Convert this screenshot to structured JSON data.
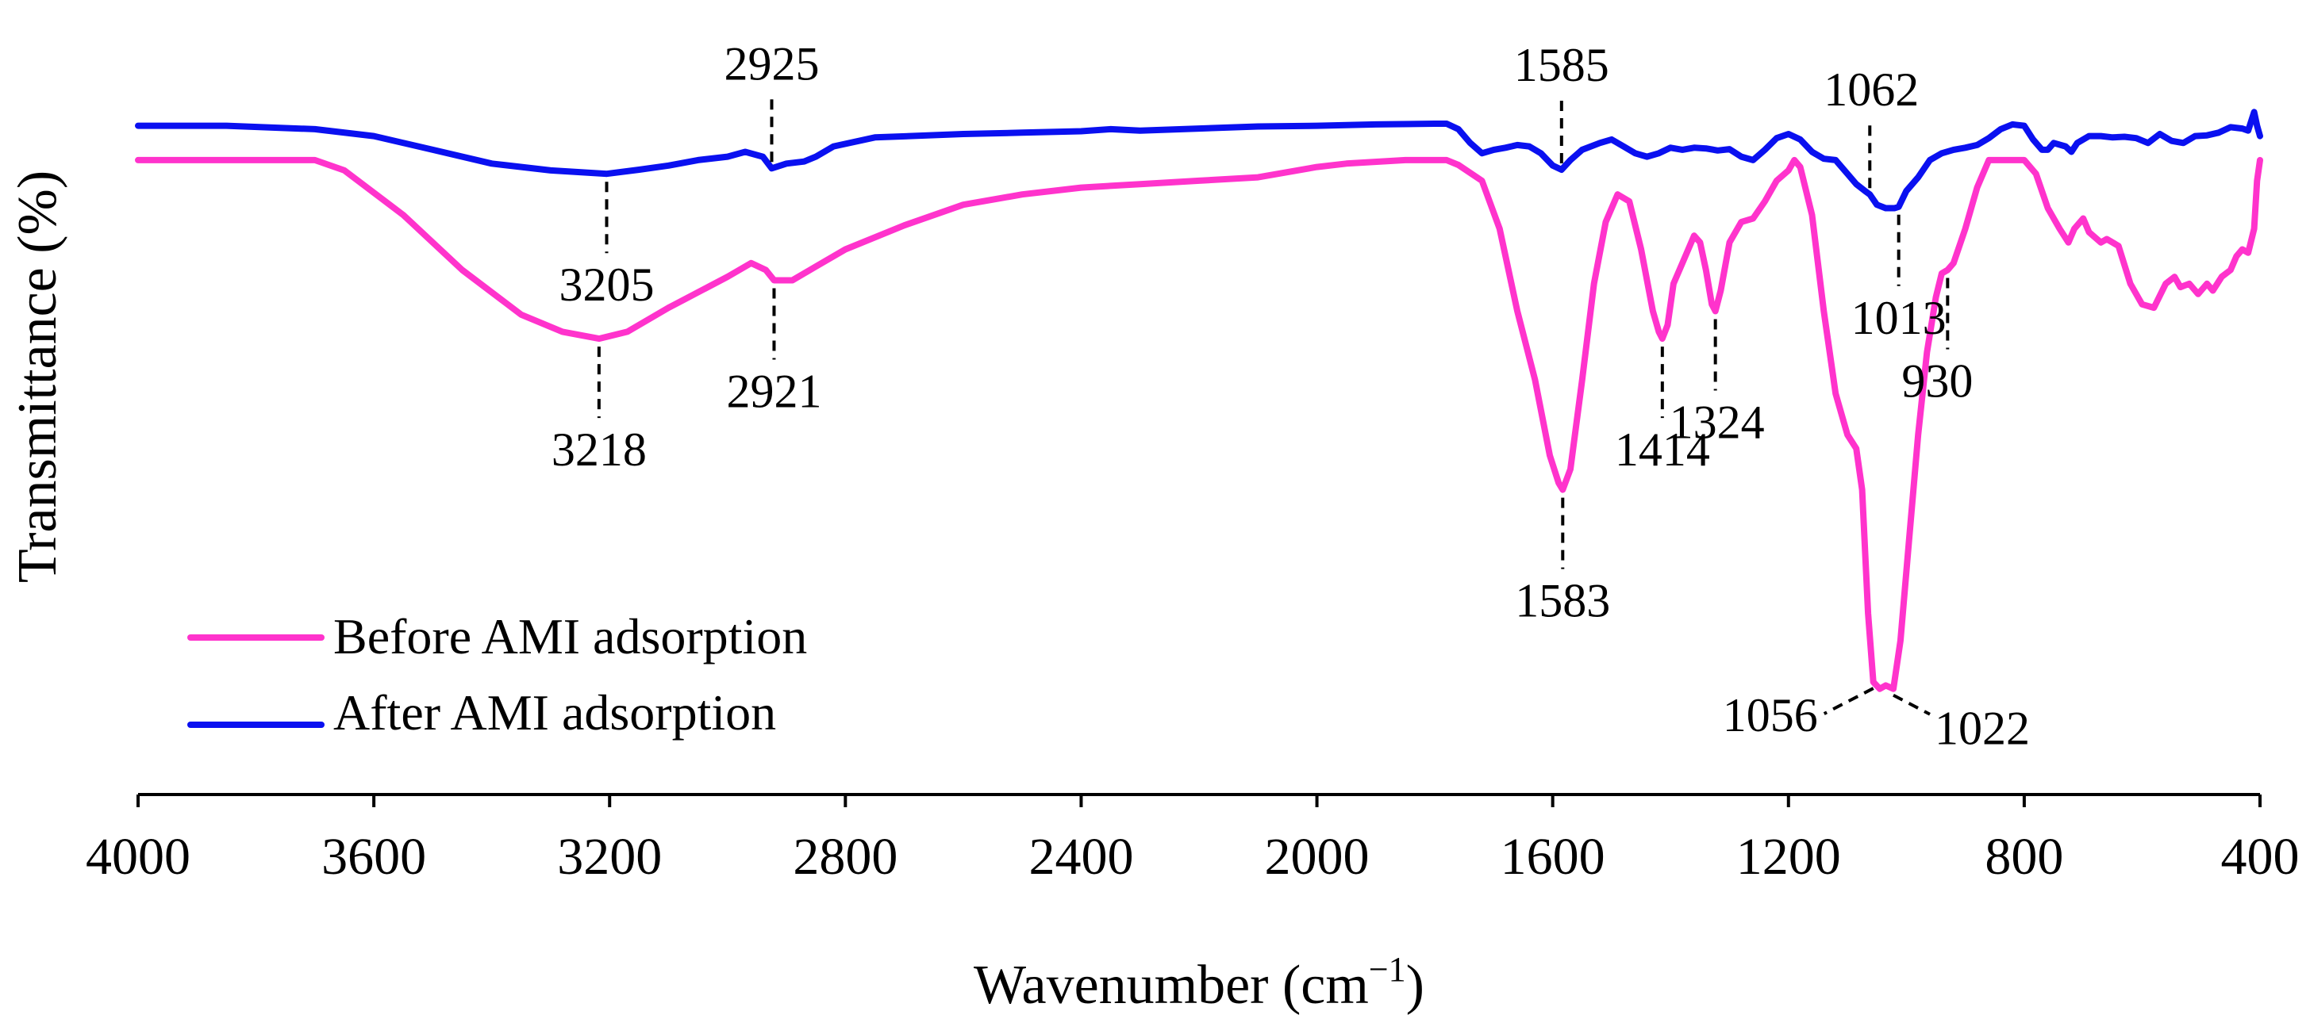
{
  "chart_data": {
    "type": "line",
    "title": "",
    "xlabel": "Wavenumber (cm⁻¹)",
    "xlabel_main": "Wavenumber (cm",
    "xlabel_sup": "−1",
    "xlabel_close": ")",
    "ylabel": "Transmittance (%)",
    "xlim": [
      4000,
      400
    ],
    "x_reversed": true,
    "ylim": [
      0,
      100
    ],
    "grid": false,
    "legend_position": "bottom-left",
    "x_ticks": [
      4000,
      3600,
      3200,
      2800,
      2400,
      2000,
      1600,
      1200,
      800,
      400
    ],
    "x_tick_labels": [
      "4000",
      "3600",
      "3200",
      "2800",
      "2400",
      "2000",
      "1600",
      "1200",
      "800",
      "400"
    ],
    "series": [
      {
        "name": "Before AMI adsorption",
        "color": "#ff33cc",
        "points": [
          [
            4000,
            88
          ],
          [
            3850,
            88
          ],
          [
            3700,
            88
          ],
          [
            3650,
            86.5
          ],
          [
            3550,
            80
          ],
          [
            3450,
            72
          ],
          [
            3350,
            65.5
          ],
          [
            3280,
            63
          ],
          [
            3218,
            62
          ],
          [
            3170,
            63
          ],
          [
            3100,
            66.5
          ],
          [
            3000,
            71
          ],
          [
            2960,
            73
          ],
          [
            2935,
            72
          ],
          [
            2921,
            70.5
          ],
          [
            2890,
            70.5
          ],
          [
            2850,
            72.5
          ],
          [
            2800,
            75
          ],
          [
            2700,
            78.5
          ],
          [
            2600,
            81.5
          ],
          [
            2500,
            83
          ],
          [
            2400,
            84
          ],
          [
            2300,
            84.5
          ],
          [
            2200,
            85
          ],
          [
            2100,
            85.5
          ],
          [
            2000,
            87
          ],
          [
            1950,
            87.5
          ],
          [
            1850,
            88
          ],
          [
            1780,
            88
          ],
          [
            1760,
            87.3
          ],
          [
            1720,
            85
          ],
          [
            1690,
            78
          ],
          [
            1660,
            66
          ],
          [
            1630,
            56
          ],
          [
            1605,
            45
          ],
          [
            1590,
            41
          ],
          [
            1583,
            40
          ],
          [
            1570,
            43
          ],
          [
            1550,
            56
          ],
          [
            1530,
            70
          ],
          [
            1510,
            79
          ],
          [
            1490,
            83
          ],
          [
            1470,
            82
          ],
          [
            1450,
            75
          ],
          [
            1430,
            66
          ],
          [
            1420,
            63
          ],
          [
            1414,
            62
          ],
          [
            1405,
            64
          ],
          [
            1395,
            70
          ],
          [
            1380,
            73
          ],
          [
            1360,
            77
          ],
          [
            1350,
            76
          ],
          [
            1340,
            72
          ],
          [
            1330,
            67
          ],
          [
            1324,
            66
          ],
          [
            1315,
            69
          ],
          [
            1300,
            76
          ],
          [
            1280,
            79
          ],
          [
            1260,
            79.5
          ],
          [
            1240,
            82
          ],
          [
            1220,
            85
          ],
          [
            1200,
            86.5
          ],
          [
            1190,
            88
          ],
          [
            1180,
            87
          ],
          [
            1160,
            80
          ],
          [
            1140,
            66
          ],
          [
            1120,
            54
          ],
          [
            1100,
            48
          ],
          [
            1085,
            46
          ],
          [
            1075,
            40
          ],
          [
            1065,
            22
          ],
          [
            1056,
            12
          ],
          [
            1045,
            11
          ],
          [
            1035,
            11.5
          ],
          [
            1022,
            11
          ],
          [
            1010,
            18
          ],
          [
            995,
            33
          ],
          [
            980,
            48
          ],
          [
            965,
            60
          ],
          [
            950,
            68
          ],
          [
            940,
            71.5
          ],
          [
            930,
            72
          ],
          [
            920,
            73
          ],
          [
            900,
            78
          ],
          [
            880,
            84
          ],
          [
            860,
            88
          ],
          [
            840,
            88
          ],
          [
            800,
            88
          ],
          [
            780,
            86
          ],
          [
            760,
            81
          ],
          [
            740,
            78
          ],
          [
            725,
            76
          ],
          [
            715,
            78
          ],
          [
            700,
            79.5
          ],
          [
            690,
            77.5
          ],
          [
            670,
            76
          ],
          [
            660,
            76.5
          ],
          [
            640,
            75.5
          ],
          [
            620,
            70
          ],
          [
            600,
            67
          ],
          [
            580,
            66.5
          ],
          [
            560,
            70
          ],
          [
            545,
            71
          ],
          [
            535,
            69.5
          ],
          [
            520,
            70
          ],
          [
            505,
            68.5
          ],
          [
            490,
            70
          ],
          [
            480,
            69
          ],
          [
            465,
            71
          ],
          [
            450,
            72
          ],
          [
            440,
            74
          ],
          [
            430,
            75
          ],
          [
            420,
            74.5
          ],
          [
            410,
            78
          ],
          [
            405,
            85
          ],
          [
            400,
            88
          ]
        ]
      },
      {
        "name": "After AMI adsorption",
        "color": "#0a10f0",
        "points": [
          [
            4000,
            93
          ],
          [
            3850,
            93
          ],
          [
            3700,
            92.5
          ],
          [
            3600,
            91.5
          ],
          [
            3500,
            89.5
          ],
          [
            3400,
            87.5
          ],
          [
            3300,
            86.5
          ],
          [
            3205,
            86
          ],
          [
            3150,
            86.6
          ],
          [
            3100,
            87.2
          ],
          [
            3050,
            88
          ],
          [
            3000,
            88.5
          ],
          [
            2970,
            89.2
          ],
          [
            2940,
            88.5
          ],
          [
            2925,
            86.8
          ],
          [
            2900,
            87.5
          ],
          [
            2870,
            87.8
          ],
          [
            2850,
            88.5
          ],
          [
            2820,
            90
          ],
          [
            2750,
            91.3
          ],
          [
            2600,
            91.8
          ],
          [
            2500,
            92
          ],
          [
            2400,
            92.2
          ],
          [
            2350,
            92.5
          ],
          [
            2300,
            92.3
          ],
          [
            2200,
            92.6
          ],
          [
            2100,
            92.9
          ],
          [
            2000,
            93
          ],
          [
            1900,
            93.2
          ],
          [
            1800,
            93.3
          ],
          [
            1780,
            93.3
          ],
          [
            1760,
            92.5
          ],
          [
            1740,
            90.5
          ],
          [
            1720,
            89
          ],
          [
            1700,
            89.5
          ],
          [
            1680,
            89.8
          ],
          [
            1660,
            90.2
          ],
          [
            1640,
            90
          ],
          [
            1620,
            89
          ],
          [
            1600,
            87.2
          ],
          [
            1585,
            86.6
          ],
          [
            1570,
            88
          ],
          [
            1550,
            89.5
          ],
          [
            1520,
            90.5
          ],
          [
            1500,
            91
          ],
          [
            1480,
            90
          ],
          [
            1460,
            89
          ],
          [
            1440,
            88.5
          ],
          [
            1420,
            89
          ],
          [
            1400,
            89.8
          ],
          [
            1380,
            89.5
          ],
          [
            1360,
            89.8
          ],
          [
            1340,
            89.7
          ],
          [
            1320,
            89.4
          ],
          [
            1300,
            89.6
          ],
          [
            1280,
            88.5
          ],
          [
            1260,
            88
          ],
          [
            1240,
            89.5
          ],
          [
            1220,
            91.2
          ],
          [
            1200,
            91.8
          ],
          [
            1180,
            91
          ],
          [
            1160,
            89.2
          ],
          [
            1140,
            88.2
          ],
          [
            1120,
            88
          ],
          [
            1100,
            86
          ],
          [
            1085,
            84.5
          ],
          [
            1070,
            83.5
          ],
          [
            1062,
            83
          ],
          [
            1050,
            81.5
          ],
          [
            1035,
            81
          ],
          [
            1020,
            81
          ],
          [
            1013,
            81.2
          ],
          [
            1000,
            83.5
          ],
          [
            980,
            85.5
          ],
          [
            960,
            88
          ],
          [
            940,
            89
          ],
          [
            920,
            89.5
          ],
          [
            900,
            89.8
          ],
          [
            880,
            90.2
          ],
          [
            860,
            91.2
          ],
          [
            840,
            92.5
          ],
          [
            820,
            93.2
          ],
          [
            800,
            93
          ],
          [
            785,
            91
          ],
          [
            770,
            89.5
          ],
          [
            760,
            89.5
          ],
          [
            750,
            90.5
          ],
          [
            730,
            90
          ],
          [
            720,
            89.2
          ],
          [
            710,
            90.5
          ],
          [
            690,
            91.5
          ],
          [
            670,
            91.5
          ],
          [
            650,
            91.3
          ],
          [
            630,
            91.4
          ],
          [
            610,
            91.2
          ],
          [
            590,
            90.5
          ],
          [
            570,
            91.8
          ],
          [
            550,
            90.8
          ],
          [
            530,
            90.5
          ],
          [
            510,
            91.5
          ],
          [
            490,
            91.6
          ],
          [
            470,
            92
          ],
          [
            450,
            92.8
          ],
          [
            430,
            92.6
          ],
          [
            420,
            92.3
          ],
          [
            410,
            95
          ],
          [
            405,
            93
          ],
          [
            400,
            91.5
          ]
        ]
      }
    ],
    "annotations": [
      {
        "text": "3218",
        "series": "Before AMI adsorption",
        "x": 3218,
        "dir": "down",
        "anchor": "middle"
      },
      {
        "text": "2921",
        "series": "Before AMI adsorption",
        "x": 2921,
        "dir": "down",
        "anchor": "middle"
      },
      {
        "text": "1583",
        "series": "Before AMI adsorption",
        "x": 1583,
        "dir": "down",
        "anchor": "middle"
      },
      {
        "text": "1414",
        "series": "Before AMI adsorption",
        "x": 1414,
        "dir": "down",
        "anchor": "middle"
      },
      {
        "text": "1324",
        "series": "Before AMI adsorption",
        "x": 1324,
        "dir": "down",
        "anchor": "start"
      },
      {
        "text": "1056",
        "series": "Before AMI adsorption",
        "x": 1056,
        "dir": "down-left",
        "anchor": "end"
      },
      {
        "text": "1022",
        "series": "Before AMI adsorption",
        "x": 1022,
        "dir": "down-right",
        "anchor": "start"
      },
      {
        "text": "930",
        "series": "Before AMI adsorption",
        "x": 930,
        "dir": "down",
        "anchor": "start"
      },
      {
        "text": "3205",
        "series": "After AMI adsorption",
        "x": 3205,
        "dir": "down",
        "anchor": "middle"
      },
      {
        "text": "2925",
        "series": "After AMI adsorption",
        "x": 2925,
        "dir": "up",
        "anchor": "middle"
      },
      {
        "text": "1585",
        "series": "After AMI adsorption",
        "x": 1585,
        "dir": "up",
        "anchor": "middle"
      },
      {
        "text": "1062",
        "series": "After AMI adsorption",
        "x": 1062,
        "dir": "up",
        "anchor": "start"
      },
      {
        "text": "1013",
        "series": "After AMI adsorption",
        "x": 1013,
        "dir": "down",
        "anchor": "middle"
      }
    ]
  }
}
